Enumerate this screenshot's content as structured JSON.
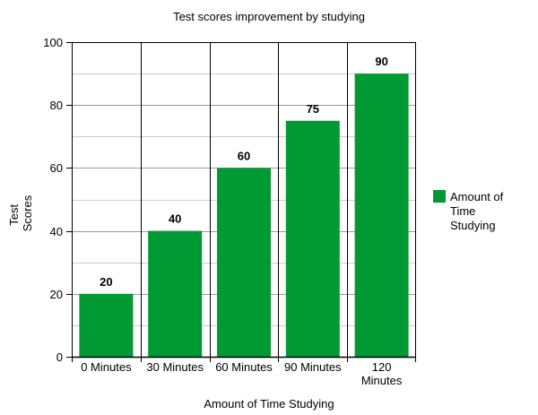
{
  "chart_data": {
    "type": "bar",
    "title": "Test scores improvement by studying",
    "xlabel": "Amount of Time Studying",
    "ylabel": [
      "Test",
      "Scores"
    ],
    "categories": [
      [
        "0 Minutes"
      ],
      [
        "30 Minutes"
      ],
      [
        "60 Minutes"
      ],
      [
        "90 Minutes"
      ],
      [
        "120",
        "Minutes"
      ]
    ],
    "series": [
      {
        "name": "Amount of Time Studying",
        "legend_lines": [
          "Amount of",
          "Time",
          "Studying"
        ],
        "values": [
          20,
          40,
          60,
          75,
          90
        ],
        "color": "#009933"
      }
    ],
    "ylim": [
      0,
      100
    ],
    "yticks": [
      0,
      20,
      40,
      60,
      80,
      100
    ],
    "minor_grid_step": 10,
    "grid": true,
    "legend": "right"
  }
}
